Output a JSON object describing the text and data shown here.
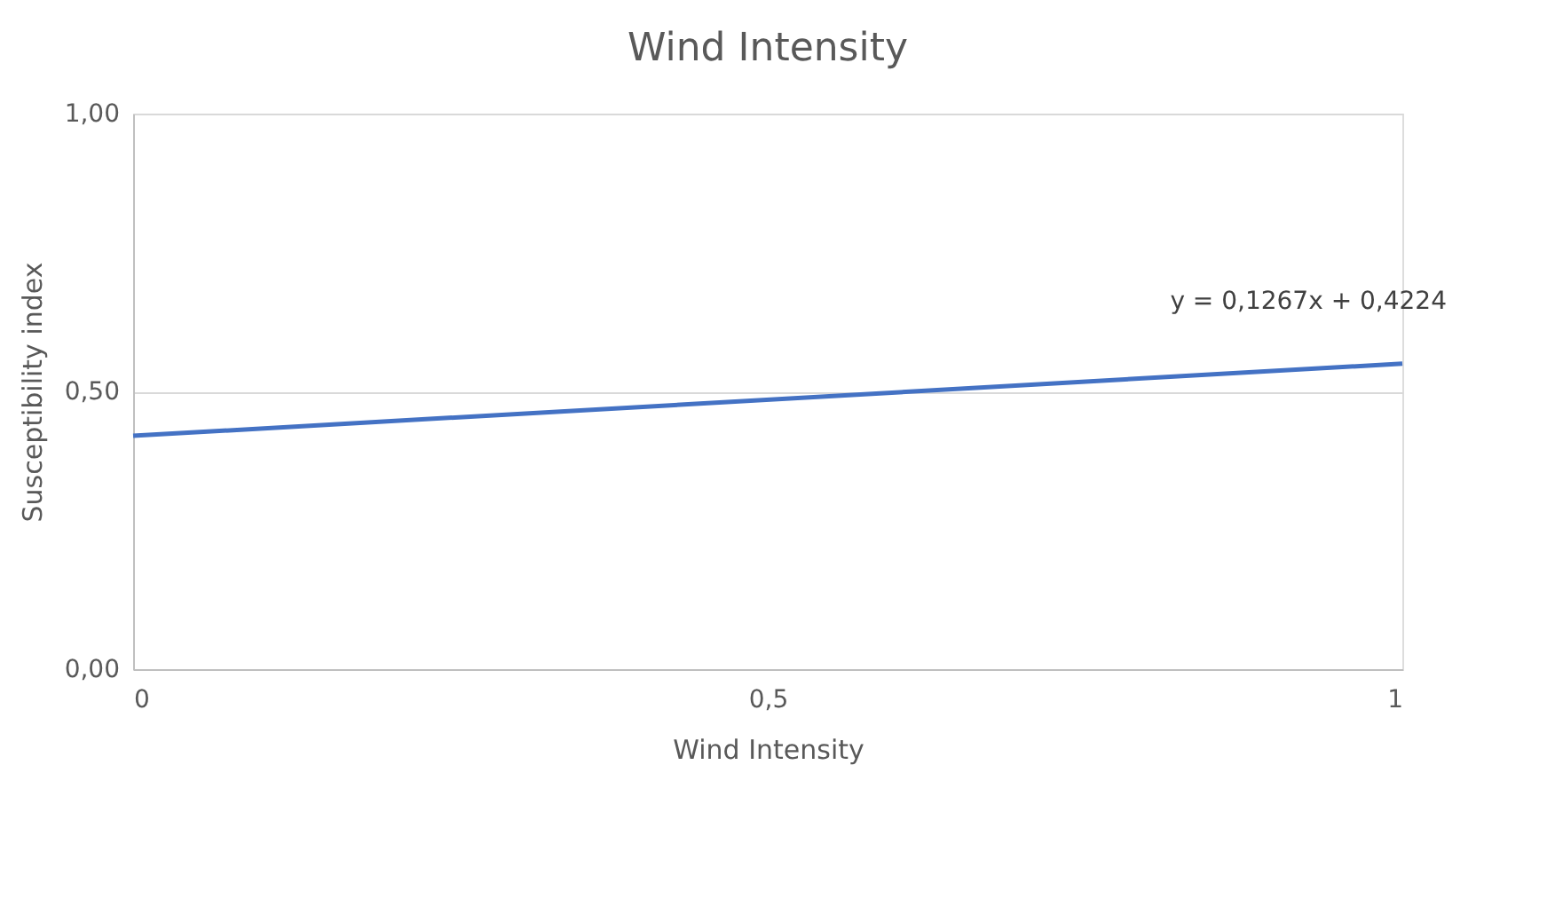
{
  "chart_data": {
    "type": "line",
    "title": "Wind Intensity",
    "xlabel": "Wind Intensity",
    "ylabel": "Susceptibility index",
    "series": [
      {
        "color": "#4472c4",
        "x": [
          0,
          1
        ],
        "values": [
          0.42,
          0.55
        ]
      }
    ],
    "annotations": [
      "y = 0,1267x + 0,4224"
    ],
    "xlim": [
      0,
      1
    ],
    "xticks": [
      0,
      {
        "value": 0.5,
        "label": "0,5"
      },
      1
    ],
    "ylim": [
      0,
      1
    ],
    "yticks": [
      {
        "value": 0,
        "label": "0,00"
      },
      {
        "value": 0.5,
        "label": "0,50"
      },
      {
        "value": 1,
        "label": "1,00"
      }
    ],
    "grid": "y",
    "marker": "none",
    "line_style": "solid"
  }
}
